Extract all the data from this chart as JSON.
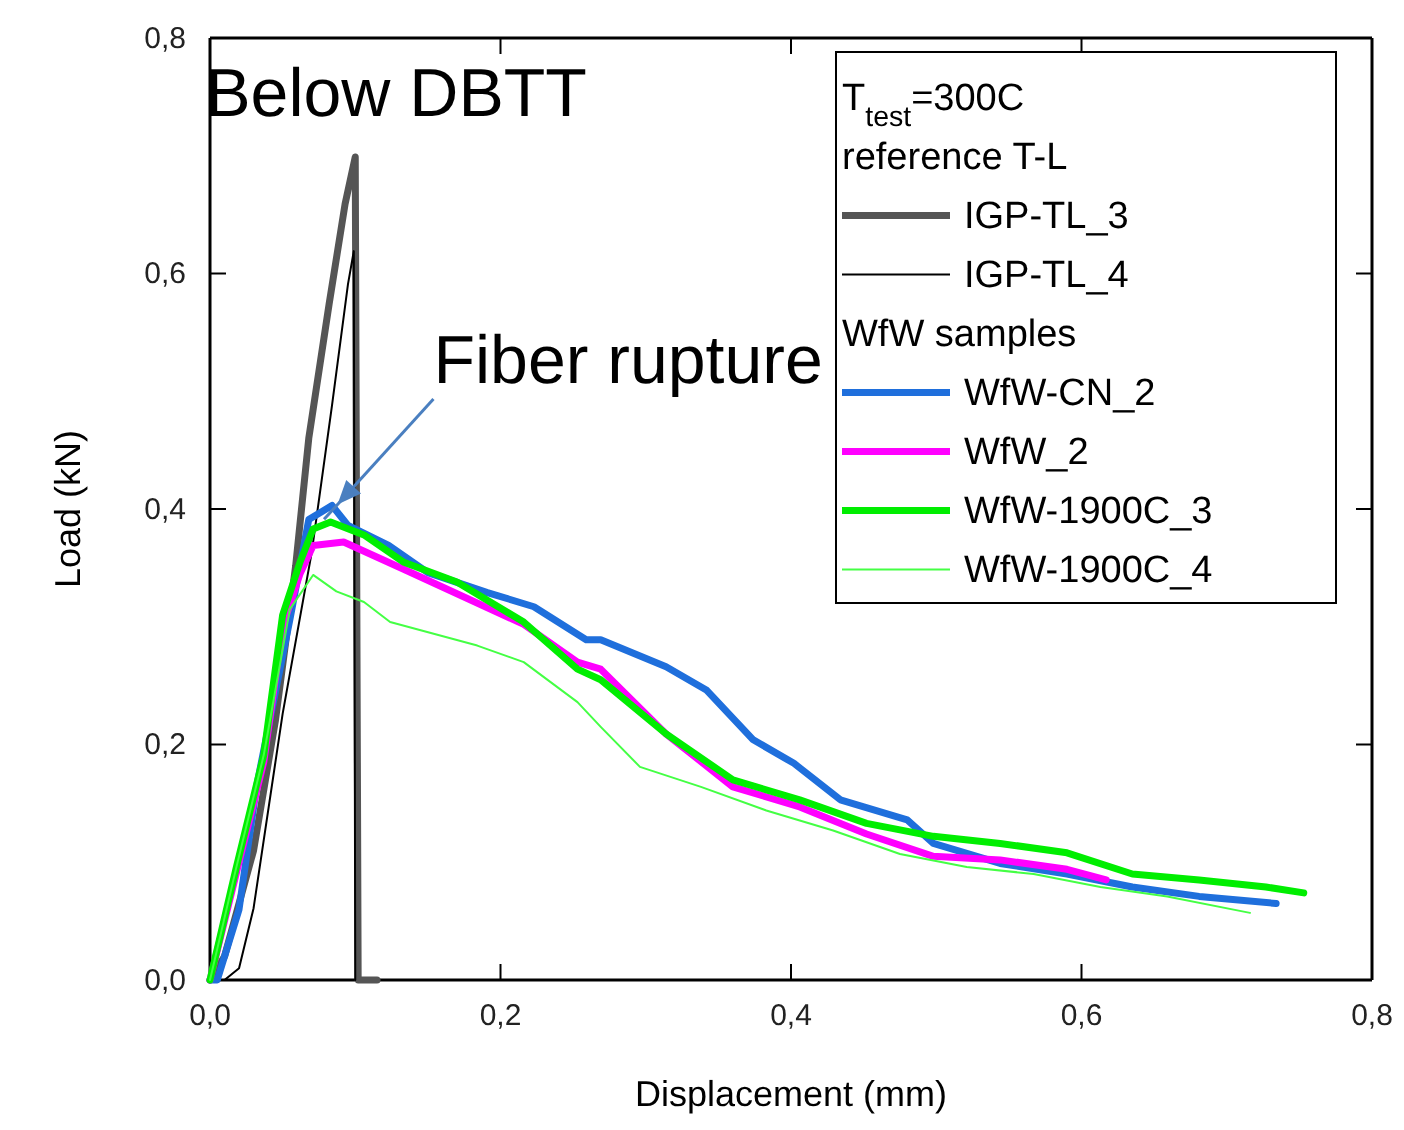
{
  "chart_data": {
    "type": "line",
    "xlabel": "Displacement (mm)",
    "ylabel": "Load (kN)",
    "xlim": [
      0,
      0.8
    ],
    "ylim": [
      0,
      0.8
    ],
    "xticks": [
      {
        "value": 0,
        "label": "0,0"
      },
      {
        "value": 0.2,
        "label": "0,2"
      },
      {
        "value": 0.4,
        "label": "0,4"
      },
      {
        "value": 0.6,
        "label": "0,6"
      },
      {
        "value": 0.8,
        "label": "0,8"
      }
    ],
    "yticks": [
      {
        "value": 0,
        "label": "0,0"
      },
      {
        "value": 0.2,
        "label": "0,2"
      },
      {
        "value": 0.4,
        "label": "0,4"
      },
      {
        "value": 0.6,
        "label": "0,6"
      },
      {
        "value": 0.8,
        "label": "0,8"
      }
    ],
    "grid": false,
    "legend": "top right",
    "legend_title": "T$_{test}$=300C",
    "annotations": [
      {
        "text": "Below DBTT",
        "x": 0.1,
        "y": 0.7
      },
      {
        "text": "Fiber rupture",
        "x": 0.085,
        "y": 0.4
      },
      "reference T-L",
      "WfW samples"
    ],
    "series": [
      {
        "name": "IGP-TL_3",
        "color": "#555555",
        "x": [
          0,
          0.01,
          0.03,
          0.045,
          0.059,
          0.068,
          0.082,
          0.093,
          0.1,
          0.102,
          0.115
        ],
        "values": [
          0,
          0.02,
          0.11,
          0.22,
          0.352,
          0.46,
          0.574,
          0.659,
          0.699,
          0,
          0
        ]
      },
      {
        "name": "IGP-TL_4",
        "color": "#000000",
        "x": [
          0,
          0.01,
          0.02,
          0.03,
          0.05,
          0.07,
          0.084,
          0.095,
          0.099,
          0.1
        ],
        "values": [
          0,
          0,
          0.01,
          0.061,
          0.226,
          0.363,
          0.488,
          0.591,
          0.619,
          0
        ]
      },
      {
        "name": "WfW-CN_2",
        "color": "#1f6fdc",
        "x": [
          0,
          0.005,
          0.02,
          0.032,
          0.055,
          0.068,
          0.084,
          0.095,
          0.123,
          0.15,
          0.191,
          0.223,
          0.259,
          0.269,
          0.314,
          0.342,
          0.374,
          0.402,
          0.434,
          0.48,
          0.498,
          0.544,
          0.59,
          0.635,
          0.681,
          0.734
        ],
        "values": [
          0,
          0,
          0.06,
          0.164,
          0.306,
          0.391,
          0.403,
          0.386,
          0.369,
          0.346,
          0.329,
          0.317,
          0.289,
          0.289,
          0.266,
          0.246,
          0.204,
          0.184,
          0.153,
          0.136,
          0.116,
          0.099,
          0.09,
          0.079,
          0.071,
          0.065
        ]
      },
      {
        "name": "WfW_2",
        "color": "#ff00ff",
        "x": [
          0,
          0.018,
          0.037,
          0.05,
          0.062,
          0.071,
          0.092,
          0.133,
          0.216,
          0.253,
          0.269,
          0.314,
          0.36,
          0.406,
          0.452,
          0.498,
          0.544,
          0.59,
          0.617
        ],
        "values": [
          0,
          0.09,
          0.185,
          0.3,
          0.345,
          0.369,
          0.372,
          0.349,
          0.302,
          0.27,
          0.264,
          0.209,
          0.164,
          0.147,
          0.124,
          0.105,
          0.102,
          0.094,
          0.085
        ]
      },
      {
        "name": "WfW-1900C_3",
        "color": "#00ee00",
        "x": [
          0,
          0.018,
          0.037,
          0.05,
          0.062,
          0.071,
          0.083,
          0.106,
          0.133,
          0.17,
          0.216,
          0.253,
          0.269,
          0.314,
          0.36,
          0.406,
          0.452,
          0.498,
          0.544,
          0.59,
          0.635,
          0.681,
          0.727,
          0.753
        ],
        "values": [
          0,
          0.095,
          0.191,
          0.31,
          0.355,
          0.383,
          0.389,
          0.378,
          0.355,
          0.338,
          0.304,
          0.264,
          0.255,
          0.209,
          0.17,
          0.153,
          0.133,
          0.122,
          0.116,
          0.108,
          0.09,
          0.085,
          0.079,
          0.074
        ]
      },
      {
        "name": "WfW-1900C_4",
        "color": "#44ff44",
        "x": [
          0,
          0.018,
          0.037,
          0.055,
          0.071,
          0.087,
          0.106,
          0.124,
          0.184,
          0.216,
          0.253,
          0.269,
          0.296,
          0.338,
          0.383,
          0.429,
          0.475,
          0.521,
          0.567,
          0.613,
          0.659,
          0.716
        ],
        "values": [
          0,
          0.095,
          0.191,
          0.315,
          0.344,
          0.33,
          0.321,
          0.304,
          0.284,
          0.27,
          0.236,
          0.215,
          0.181,
          0.164,
          0.144,
          0.127,
          0.107,
          0.096,
          0.09,
          0.079,
          0.071,
          0.057
        ]
      }
    ]
  }
}
